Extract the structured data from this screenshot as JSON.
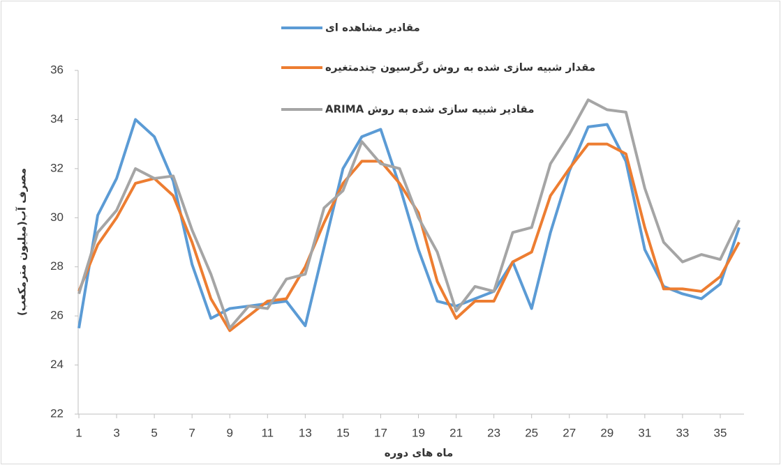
{
  "chart_data": {
    "type": "line",
    "x_label": "ماه های دوره",
    "y_label": "مصرف آب(میلیون مترمکعب)",
    "x": [
      1,
      2,
      3,
      4,
      5,
      6,
      7,
      8,
      9,
      10,
      11,
      12,
      13,
      14,
      15,
      16,
      17,
      18,
      19,
      20,
      21,
      22,
      23,
      24,
      25,
      26,
      27,
      28,
      29,
      30,
      31,
      32,
      33,
      34,
      35,
      36
    ],
    "xlim": [
      1,
      36
    ],
    "xticks": [
      1,
      3,
      5,
      7,
      9,
      11,
      13,
      15,
      17,
      19,
      21,
      23,
      25,
      27,
      29,
      31,
      33,
      35
    ],
    "ylim": [
      22,
      36
    ],
    "yticks": [
      22,
      24,
      26,
      28,
      30,
      32,
      34,
      36
    ],
    "grid": false,
    "series": [
      {
        "name": "مقادیر مشاهده ای",
        "color": "#5b9bd5",
        "values": [
          25.5,
          30.1,
          31.6,
          34.0,
          33.3,
          31.5,
          28.1,
          25.9,
          26.3,
          26.4,
          26.5,
          26.6,
          25.6,
          28.8,
          32.0,
          33.3,
          33.6,
          31.3,
          28.7,
          26.6,
          26.4,
          26.7,
          27.0,
          28.2,
          26.3,
          29.4,
          31.9,
          33.7,
          33.8,
          32.3,
          28.7,
          27.2,
          26.9,
          26.7,
          27.3,
          29.6
        ]
      },
      {
        "name": "مقدار شبیه سازی شده به روش رگرسیون چندمتغیره",
        "color": "#ed7d31",
        "values": [
          27.0,
          28.9,
          30.0,
          31.4,
          31.6,
          30.9,
          29.0,
          26.7,
          25.4,
          26.0,
          26.6,
          26.7,
          28.0,
          29.8,
          31.4,
          32.3,
          32.3,
          31.4,
          30.2,
          27.4,
          25.9,
          26.6,
          26.6,
          28.2,
          28.6,
          30.9,
          32.0,
          33.0,
          33.0,
          32.6,
          29.6,
          27.1,
          27.1,
          27.0,
          27.6,
          29.0
        ]
      },
      {
        "name": "مقادیر شبیه سازی شده به روش ARIMA",
        "color": "#a5a5a5",
        "values": [
          26.9,
          29.4,
          30.3,
          32.0,
          31.6,
          31.7,
          29.5,
          27.7,
          25.5,
          26.4,
          26.3,
          27.5,
          27.7,
          30.4,
          31.1,
          33.1,
          32.2,
          32.0,
          30.0,
          28.6,
          26.2,
          27.2,
          27.0,
          29.4,
          29.6,
          32.2,
          33.4,
          34.8,
          34.4,
          34.3,
          31.2,
          29.0,
          28.2,
          28.5,
          28.3,
          29.9
        ]
      }
    ]
  }
}
